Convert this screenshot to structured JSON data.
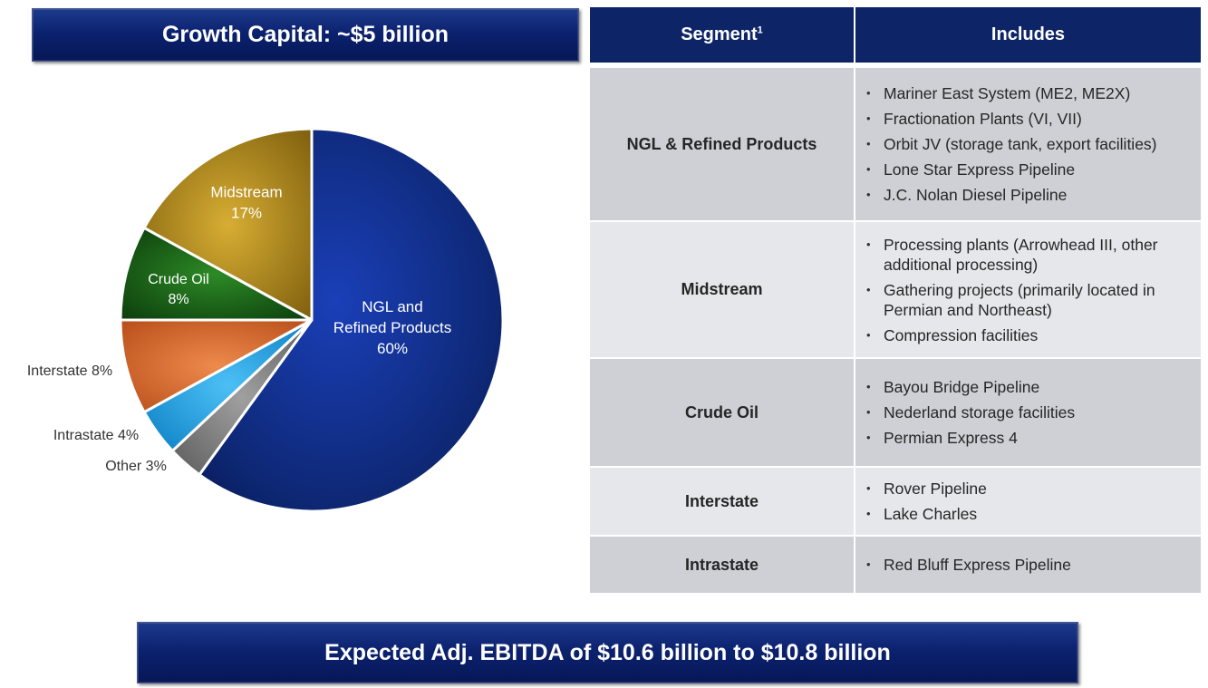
{
  "header": {
    "title": "Growth Capital: ~$5 billion"
  },
  "footer": {
    "text": "Expected Adj. EBITDA of $10.6 billion to $10.8 billion"
  },
  "chart_data": {
    "type": "pie",
    "title": "",
    "slices": [
      {
        "label_lines": [
          "NGL and",
          "Refined Products"
        ],
        "value": 60,
        "pct": "60%",
        "color": "#0e2875",
        "label_position": "inside"
      },
      {
        "label_lines": [
          "Other"
        ],
        "value": 3,
        "pct": "3%",
        "color": "#7a7a7a",
        "label_position": "outside"
      },
      {
        "label_lines": [
          "Intrastate"
        ],
        "value": 4,
        "pct": "4%",
        "color": "#1da2e8",
        "label_position": "outside"
      },
      {
        "label_lines": [
          "Interstate"
        ],
        "value": 8,
        "pct": "8%",
        "color": "#d6692e",
        "label_position": "outside"
      },
      {
        "label_lines": [
          "Crude Oil"
        ],
        "value": 8,
        "pct": "8%",
        "color": "#1a6318",
        "label_position": "inside"
      },
      {
        "label_lines": [
          "Midstream"
        ],
        "value": 17,
        "pct": "17%",
        "color": "#b08a1c",
        "label_position": "inside"
      }
    ]
  },
  "table": {
    "headers": {
      "segment": "Segment",
      "segment_footnote": "1",
      "includes": "Includes"
    },
    "rows": [
      {
        "segment": "NGL & Refined Products",
        "items": [
          "Mariner East System (ME2, ME2X)",
          "Fractionation Plants (VI, VII)",
          "Orbit JV (storage tank, export facilities)",
          "Lone Star Express Pipeline",
          "J.C. Nolan Diesel Pipeline"
        ]
      },
      {
        "segment": "Midstream",
        "items": [
          "Processing plants (Arrowhead III, other additional processing)",
          "Gathering projects (primarily located in Permian and Northeast)",
          "Compression facilities"
        ]
      },
      {
        "segment": "Crude Oil",
        "items": [
          "Bayou Bridge Pipeline",
          "Nederland storage facilities",
          "Permian Express 4"
        ]
      },
      {
        "segment": "Interstate",
        "items": [
          "Rover Pipeline",
          "Lake Charles"
        ]
      },
      {
        "segment": "Intrastate",
        "items": [
          "Red Bluff Express Pipeline"
        ]
      }
    ]
  }
}
